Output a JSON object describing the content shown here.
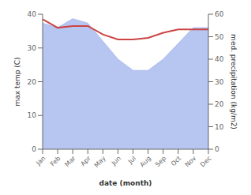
{
  "chart_data": {
    "type": "line",
    "xlabel": "date (month)",
    "ylabel": "max temp (C)",
    "y2label": "med. precipitation (kg/m2)",
    "categories": [
      "Jan",
      "Feb",
      "Mar",
      "Apr",
      "May",
      "Jun",
      "Jul",
      "Aug",
      "Sep",
      "Oct",
      "Nov",
      "Dec"
    ],
    "series": [
      {
        "type": "area",
        "axis": "y2",
        "color": "#aabbee",
        "values": [
          56,
          54,
          58,
          56,
          48,
          40,
          35,
          35,
          40,
          47,
          54,
          54
        ]
      },
      {
        "type": "line",
        "color": "#cc4444",
        "values": [
          38.5,
          36.0,
          36.5,
          36.5,
          34.0,
          32.5,
          32.5,
          33.0,
          34.5,
          35.5,
          35.5,
          35.5
        ]
      }
    ],
    "ylim": [
      0,
      40
    ],
    "yticks": [
      0,
      10,
      20,
      30,
      40
    ],
    "y2lim": [
      0,
      60
    ],
    "y2ticks": [
      0,
      10,
      20,
      30,
      40,
      50,
      60
    ],
    "grid": false
  }
}
